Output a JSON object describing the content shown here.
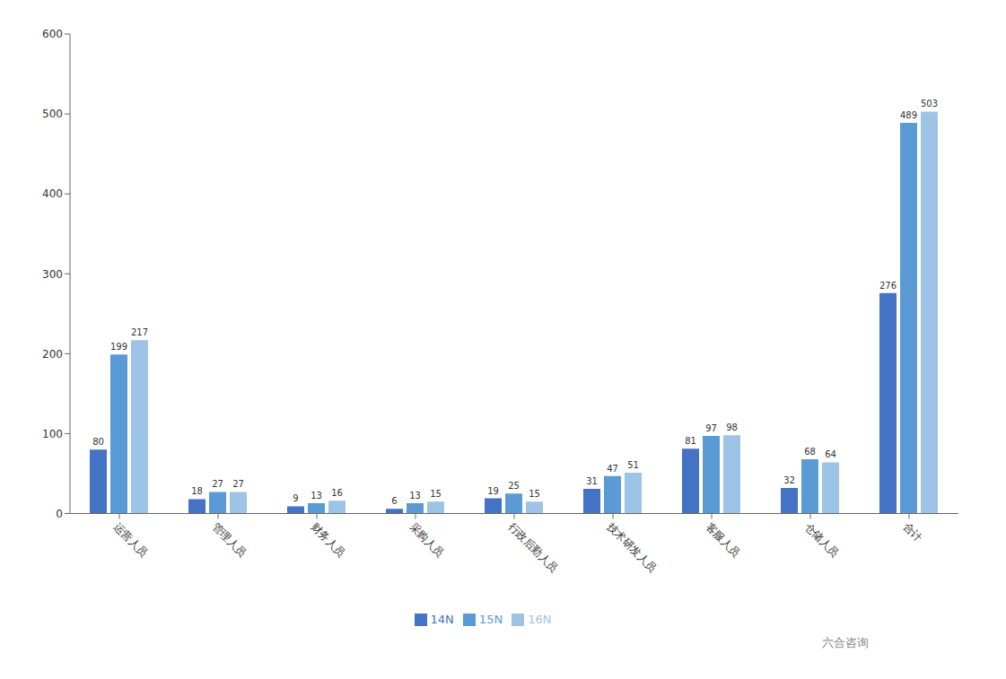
{
  "chart_data": {
    "type": "bar",
    "categories": [
      "运营人员",
      "管理人员",
      "财务人员",
      "采购人员",
      "行政后勤人员",
      "技术研发人员",
      "客服人员",
      "仓储人员",
      "合计"
    ],
    "series": [
      {
        "name": "14N",
        "color": "#4472C4",
        "values": [
          80,
          18,
          9,
          6,
          19,
          31,
          81,
          32,
          276
        ]
      },
      {
        "name": "15N",
        "color": "#5B9BD5",
        "values": [
          199,
          27,
          13,
          13,
          25,
          47,
          97,
          68,
          489
        ]
      },
      {
        "name": "16N",
        "color": "#9DC3E6",
        "values": [
          217,
          27,
          16,
          15,
          15,
          51,
          98,
          64,
          503
        ]
      }
    ],
    "ylim": [
      0,
      600
    ],
    "yticks": [
      0,
      100,
      200,
      300,
      400,
      500,
      600
    ],
    "grid": false,
    "legend": "bottom",
    "data_labels": true,
    "annotations": [
      "六合咨询"
    ]
  }
}
